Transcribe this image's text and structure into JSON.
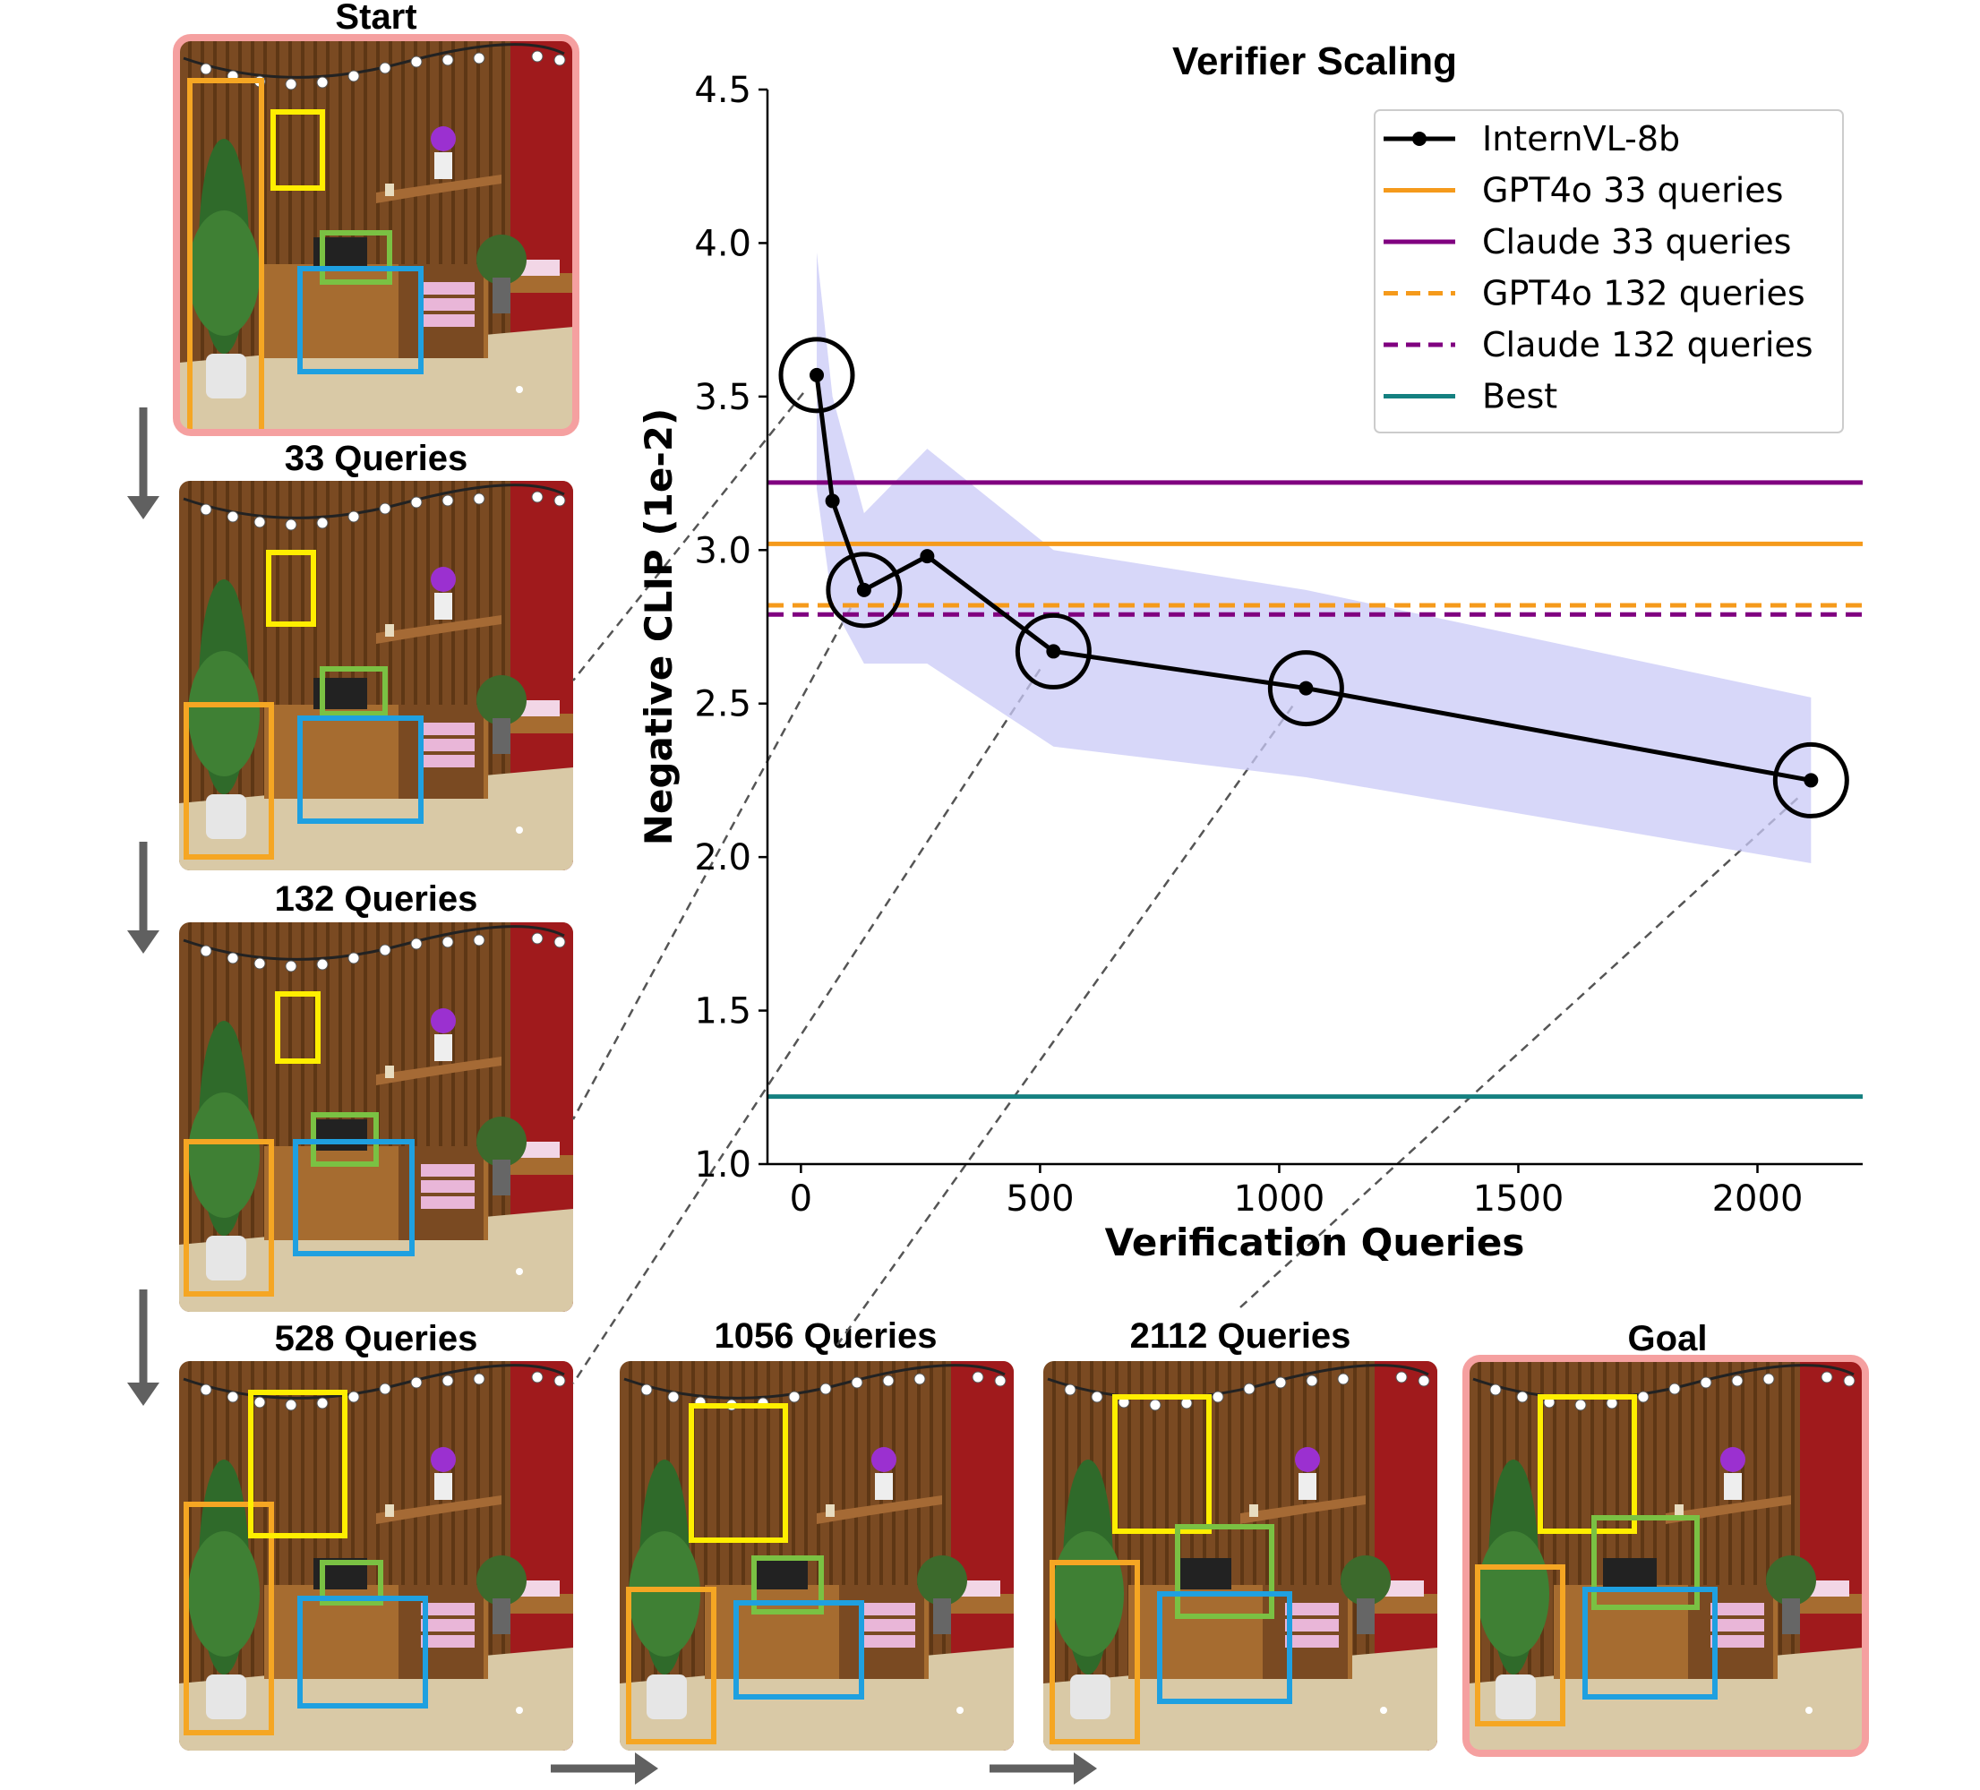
{
  "panels": [
    {
      "label": "Start",
      "highlight": true
    },
    {
      "label": "33 Queries",
      "highlight": false
    },
    {
      "label": "132 Queries",
      "highlight": false
    },
    {
      "label": "528 Queries",
      "highlight": false
    },
    {
      "label": "1056 Queries",
      "highlight": false
    },
    {
      "label": "2112 Queries",
      "highlight": false
    },
    {
      "label": "Goal",
      "highlight": true
    }
  ],
  "colors": {
    "wall": "#7a4a22",
    "wall_stripe": "#5e3715",
    "red_wall": "#a01a1c",
    "floor": "#d9c9a6",
    "plant_box": "#f5a623",
    "frame_box": "#ffee00",
    "tv_box": "#7ac143",
    "cabinet_box": "#1fa0e0",
    "highlight_border": "#f5a0a0",
    "arrow": "#606060",
    "band": "#c9c9f7"
  },
  "chart_data": {
    "type": "line",
    "title": "Verifier Scaling",
    "xlabel": "Verification Queries",
    "ylabel": "Negative CLIP (1e-2)",
    "xlim": [
      -70,
      2220
    ],
    "ylim": [
      1.0,
      4.5
    ],
    "xticks": [
      0,
      500,
      1000,
      1500,
      2000
    ],
    "yticks": [
      1.0,
      1.5,
      2.0,
      2.5,
      3.0,
      3.5,
      4.0,
      4.5
    ],
    "xtick_labels": [
      "0",
      "500",
      "1000",
      "1500",
      "2000"
    ],
    "ytick_labels": [
      "1.0",
      "1.5",
      "2.0",
      "2.5",
      "3.0",
      "3.5",
      "4.0",
      "4.5"
    ],
    "legend_position": "top-right",
    "grid": false,
    "series": [
      {
        "name": "InternVL-8b",
        "color": "#000000",
        "x": [
          33,
          66,
          132,
          264,
          528,
          1056,
          2112
        ],
        "y": [
          3.57,
          3.16,
          2.87,
          2.98,
          2.67,
          2.55,
          2.25
        ],
        "band_upper": [
          3.97,
          3.5,
          3.12,
          3.33,
          3.0,
          2.87,
          2.52
        ],
        "band_lower": [
          3.2,
          2.82,
          2.63,
          2.63,
          2.36,
          2.26,
          1.98
        ],
        "circled_x": [
          33,
          132,
          528,
          1056,
          2112
        ]
      }
    ],
    "hlines": [
      {
        "name": "GPT4o 33 queries",
        "y": 3.02,
        "color": "#f59a1b",
        "dash": "solid"
      },
      {
        "name": "Claude 33 queries",
        "y": 3.22,
        "color": "#800080",
        "dash": "solid"
      },
      {
        "name": "GPT4o 132 queries",
        "y": 2.82,
        "color": "#f59a1b",
        "dash": "dashed"
      },
      {
        "name": "Claude 132 queries",
        "y": 2.79,
        "color": "#800080",
        "dash": "dashed"
      },
      {
        "name": "Best",
        "y": 1.22,
        "color": "#148080",
        "dash": "solid"
      }
    ]
  }
}
